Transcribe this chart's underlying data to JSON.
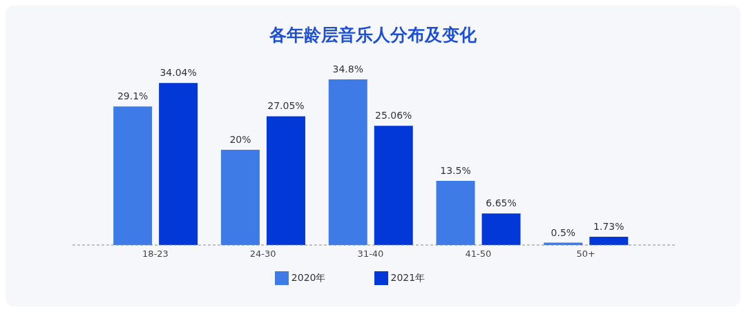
{
  "chart_data": {
    "type": "bar",
    "title": "各年龄层音乐人分布及变化",
    "categories": [
      "18-23",
      "24-30",
      "31-40",
      "41-50",
      "50+"
    ],
    "series": [
      {
        "name": "2020年",
        "color": "#3f7be6",
        "values": [
          29.1,
          20,
          34.8,
          13.5,
          0.5
        ],
        "value_labels": [
          "29.1%",
          "20%",
          "34.8%",
          "13.5%",
          "0.5%"
        ]
      },
      {
        "name": "2021年",
        "color": "#0237d8",
        "values": [
          34.04,
          27.05,
          25.06,
          6.65,
          1.73
        ],
        "value_labels": [
          "34.04%",
          "27.05%",
          "25.06%",
          "6.65%",
          "1.73%"
        ]
      }
    ],
    "legend": "bottom",
    "grid": false
  }
}
